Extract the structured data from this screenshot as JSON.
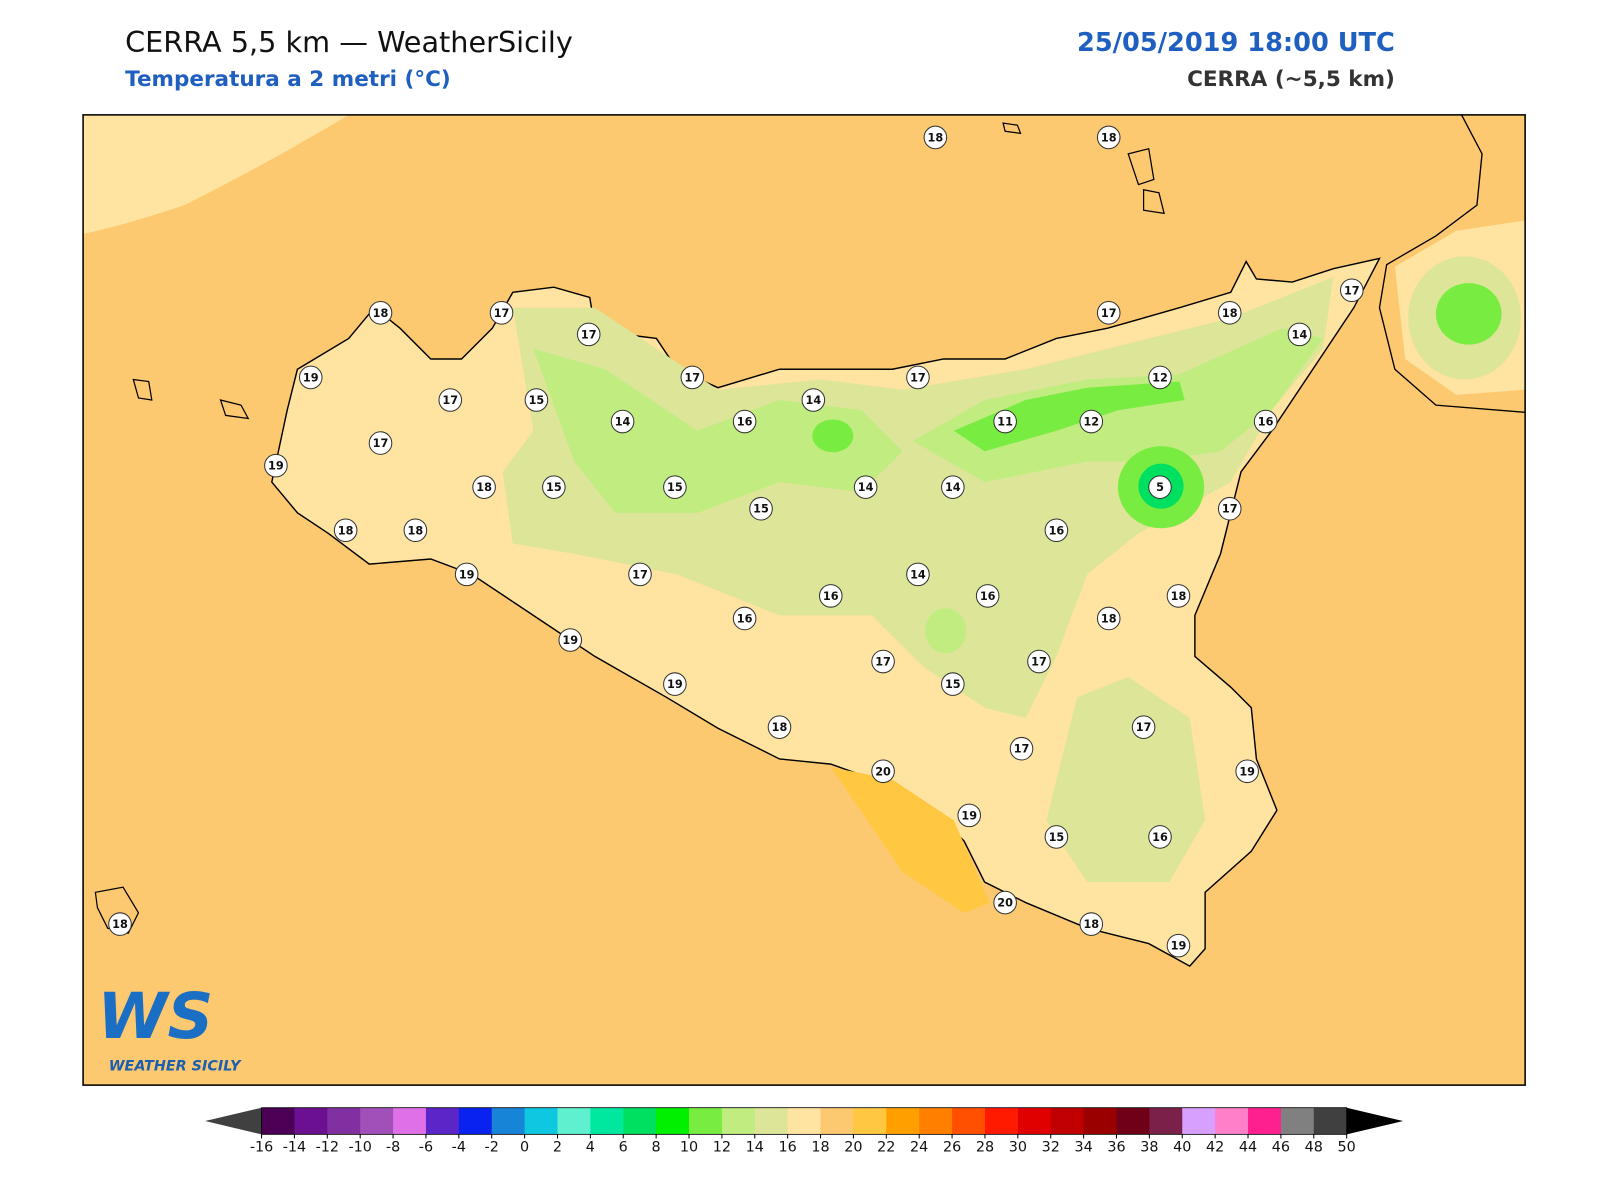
{
  "header": {
    "title": "CERRA 5,5 km — WeatherSicily",
    "subtitle": "Temperatura a 2 metri (°C)",
    "datetime": "25/05/2019 18:00 UTC",
    "model": "CERRA (~5,5 km)"
  },
  "logo": {
    "initials": "WS",
    "name": "WEATHER SICILY"
  },
  "stations": [
    18,
    18,
    18,
    17,
    17,
    17,
    18,
    17,
    14,
    19,
    17,
    15,
    14,
    17,
    16,
    14,
    17,
    11,
    12,
    12,
    16,
    17,
    19,
    18,
    15,
    15,
    15,
    14,
    14,
    5,
    17,
    18,
    18,
    16,
    19,
    17,
    14,
    16,
    16,
    18,
    16,
    18,
    19,
    17,
    17,
    15,
    19,
    18,
    17,
    17,
    20,
    19,
    19,
    15,
    16,
    20,
    18,
    19,
    18
  ],
  "colorbar": {
    "ticks": [
      -16,
      -14,
      -12,
      -10,
      -8,
      -6,
      -4,
      -2,
      0,
      2,
      4,
      6,
      8,
      10,
      12,
      14,
      16,
      18,
      20,
      22,
      24,
      26,
      28,
      30,
      32,
      34,
      36,
      38,
      40,
      42,
      44,
      46,
      48,
      50
    ],
    "colors": [
      "#4b0055",
      "#6a1090",
      "#8030a0",
      "#a050b8",
      "#e070e8",
      "#5b25c8",
      "#0a22f0",
      "#1784d8",
      "#0dc8e0",
      "#5ff0d0",
      "#00e8a0",
      "#00e060",
      "#00f000",
      "#78ec40",
      "#c0ec80",
      "#dde598",
      "#ffe3a0",
      "#fcc870",
      "#ffc840",
      "#ffa000",
      "#ff8000",
      "#ff5000",
      "#ff1a00",
      "#e00000",
      "#c00000",
      "#9a0000",
      "#700018",
      "#7b2048",
      "#d7a0ff",
      "#ff80c8",
      "#ff2090",
      "#808080",
      "#404040"
    ],
    "under_color": "#404040",
    "over_color": "#000000"
  }
}
